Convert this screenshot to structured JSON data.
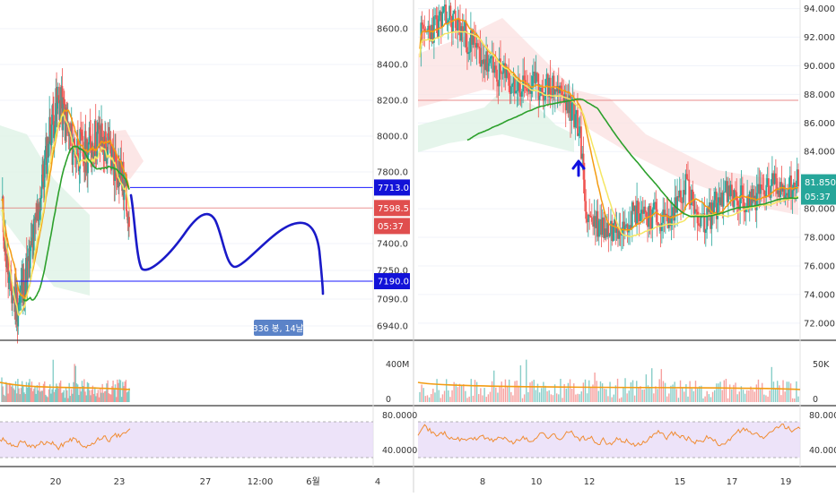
{
  "colors": {
    "up": "#26a69a",
    "down": "#ef5350",
    "ma_orange": "#f39c12",
    "ma_yellow": "#f5e663",
    "ma_green": "#2ca02c",
    "hline_blue": "#1a1aff",
    "price_red": "#e04e4e",
    "rsi_band": "#e8dcf8",
    "rsi_line": "#f08c32",
    "drawn_path": "#1a1ac8",
    "measure_tag": "#5b83c8"
  },
  "chart_data": [
    {
      "type": "candlestick",
      "panel": "left",
      "x_tick_labels": [
        "20",
        "23",
        "27",
        "12:00",
        "6월",
        "4"
      ],
      "y_tick_labels": [
        "8600.0",
        "8400.0",
        "8200.0",
        "8000.0",
        "7800.0",
        "7400.0",
        "7250.0",
        "7090.0",
        "6940.0"
      ],
      "ylim": [
        6860,
        8760
      ],
      "price_tags": [
        {
          "label": "7713.0",
          "value": 7713.0,
          "style": "blue"
        },
        {
          "label": "7598.5",
          "value": 7598.5,
          "style": "red"
        },
        {
          "label": "05:37",
          "value": 7498,
          "style": "red"
        },
        {
          "label": "7190.0",
          "value": 7190.0,
          "style": "blue"
        }
      ],
      "measure_label": "336 봉, 14날",
      "volume": {
        "y_tick_labels": [
          "400M",
          "0"
        ]
      },
      "rsi": {
        "y_tick_labels": [
          "80.0000",
          "40.0000"
        ],
        "upper": 70,
        "lower": 30
      }
    },
    {
      "type": "candlestick",
      "panel": "right",
      "x_tick_labels": [
        "8",
        "10",
        "12",
        "15",
        "17",
        "19"
      ],
      "y_tick_labels": [
        "94.000",
        "92.000",
        "90.000",
        "88.000",
        "86.000",
        "84.000",
        "80.000",
        "78.000",
        "76.000",
        "74.000",
        "72.000"
      ],
      "ylim": [
        70.8,
        94.6
      ],
      "price_tags": [
        {
          "label": "81.850",
          "value": 81.85,
          "style": "green"
        },
        {
          "label": "05:37",
          "value": 80.85,
          "style": "green"
        }
      ],
      "volume": {
        "y_tick_labels": [
          "50K",
          "0"
        ]
      },
      "rsi": {
        "y_tick_labels": [
          "80.0000",
          "40.0000"
        ],
        "upper": 70,
        "lower": 30
      }
    }
  ]
}
